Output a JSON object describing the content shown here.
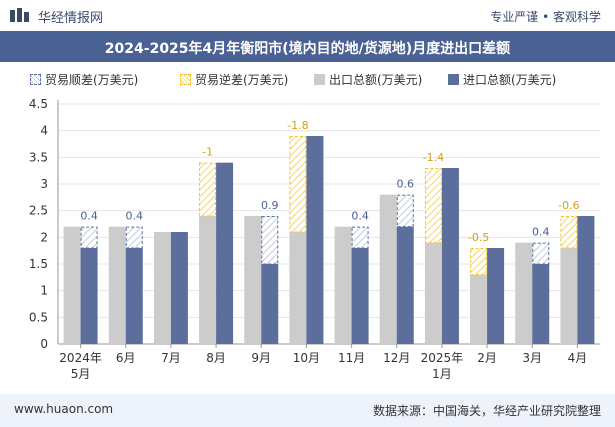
{
  "header": {
    "brand": "华经情报网",
    "tagline": "专业严谨 • 客观科学"
  },
  "footer": {
    "website": "www.huaon.com",
    "source": "数据来源：中国海关，华经产业研究院整理"
  },
  "colors": {
    "export": "#cccccc",
    "import": "#5b6e9c",
    "surplus": "#5b6e9c",
    "deficit": "#f2c230",
    "label_surplus": "#4a6194",
    "label_deficit": "#d4a017",
    "title_bg": "#4a6194"
  },
  "chart_data": {
    "type": "bar",
    "title": "2024-2025年4月年衡阳市(境内目的地/货源地)月度进出口差额",
    "legend": [
      "贸易顺差(万美元)",
      "贸易逆差(万美元)",
      "出口总额(万美元)",
      "进口总额(万美元)"
    ],
    "categories": [
      {
        "line1": "2024年",
        "line2": "5月"
      },
      {
        "line1": "6月",
        "line2": ""
      },
      {
        "line1": "7月",
        "line2": ""
      },
      {
        "line1": "8月",
        "line2": ""
      },
      {
        "line1": "9月",
        "line2": ""
      },
      {
        "line1": "10月",
        "line2": ""
      },
      {
        "line1": "11月",
        "line2": ""
      },
      {
        "line1": "12月",
        "line2": ""
      },
      {
        "line1": "2025年",
        "line2": "1月"
      },
      {
        "line1": "2月",
        "line2": ""
      },
      {
        "line1": "3月",
        "line2": ""
      },
      {
        "line1": "4月",
        "line2": ""
      }
    ],
    "series": [
      {
        "name": "出口总额(万美元)",
        "values": [
          2.2,
          2.2,
          2.1,
          2.4,
          2.4,
          2.1,
          2.2,
          2.8,
          1.9,
          1.3,
          1.9,
          1.8
        ]
      },
      {
        "name": "进口总额(万美元)",
        "values": [
          1.8,
          1.8,
          2.1,
          3.4,
          1.5,
          3.9,
          1.8,
          2.2,
          3.3,
          1.8,
          1.5,
          2.4
        ]
      }
    ],
    "balance_labels": [
      "0.4",
      "0.4",
      "",
      "-1",
      "0.9",
      "-1.8",
      "0.4",
      "0.6",
      "-1.4",
      "-0.5",
      "0.4",
      "-0.6"
    ],
    "yticks": [
      "0",
      "0.5",
      "1",
      "1.5",
      "2",
      "2.5",
      "3",
      "3.5",
      "4",
      "4.5"
    ],
    "ylim": [
      0,
      4.5
    ]
  }
}
